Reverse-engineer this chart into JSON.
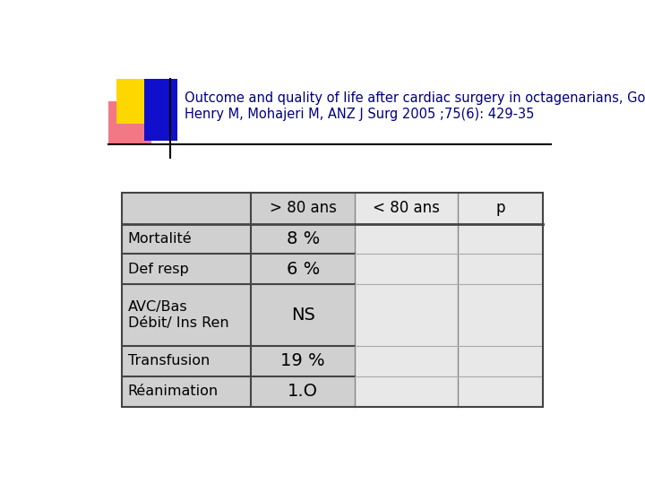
{
  "title_line1": "Outcome and quality of life after cardiac surgery in octagenarians, GoyalS,",
  "title_line2": "Henry M, Mohajeri M, ANZ J Surg 2005 ;75(6): 429-35",
  "title_color": "#000080",
  "title_fontsize": 10.5,
  "background_color": "#ffffff",
  "table_bg_dark": "#d0d0d0",
  "table_bg_light": "#e8e8e8",
  "header_row": [
    " ",
    "> 80 ans",
    "< 80 ans",
    "p"
  ],
  "rows": [
    [
      "Mortalité",
      "8 %",
      "",
      ""
    ],
    [
      "Def resp",
      "6 %",
      "",
      ""
    ],
    [
      "AVC/Bas\nDébit/ Ins Ren",
      "NS",
      "",
      ""
    ],
    [
      "Transfusion",
      "19 %",
      "",
      ""
    ],
    [
      "éanimation",
      "1.O",
      "",
      ""
    ]
  ],
  "deco_yellow": "#FFD700",
  "deco_red_light": "#FF8888",
  "deco_blue": "#1010CC"
}
